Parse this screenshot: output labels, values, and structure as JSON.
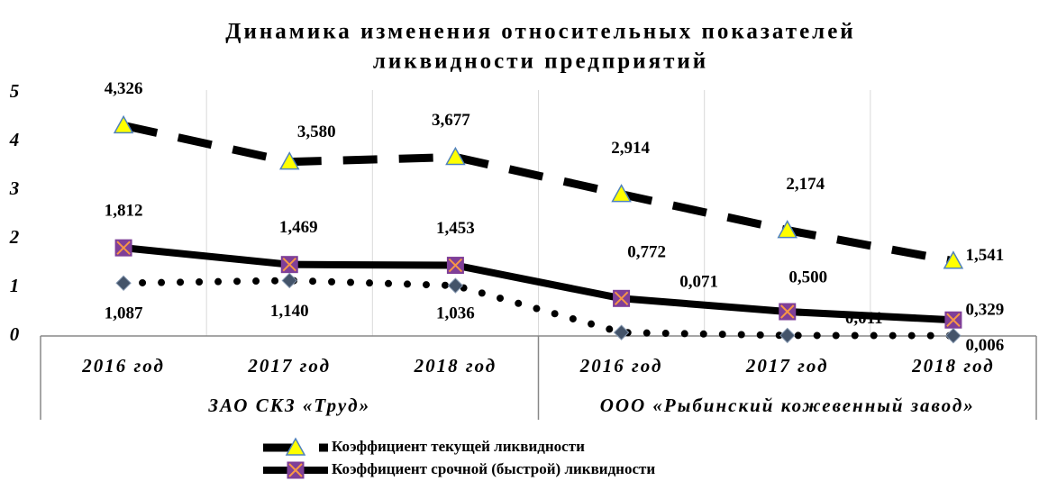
{
  "chart_data": {
    "type": "line",
    "title": [
      "Динамика изменения относительных показателей",
      "ликвидности предприятий"
    ],
    "categories": [
      "2016 год",
      "2017 год",
      "2018 год",
      "2016 год",
      "2017 год",
      "2018 год"
    ],
    "groups": [
      {
        "label": "ЗАО СКЗ «Труд»",
        "span": 3
      },
      {
        "label": "ООО «Рыбинский кожевенный завод»",
        "span": 3
      }
    ],
    "series": [
      {
        "name": "Коэффициент текущей ликвидности",
        "color": "#000000",
        "line_style": "dashed",
        "marker": "triangle",
        "values": [
          4.326,
          3.58,
          3.677,
          2.914,
          2.174,
          1.541
        ],
        "value_labels": [
          "4,326",
          "3,580",
          "3,677",
          "2,914",
          "2,174",
          "1,541"
        ]
      },
      {
        "name": "Коэффициент срочной (быстрой) ликвидности",
        "color": "#000000",
        "line_style": "solid",
        "marker": "square",
        "values": [
          1.812,
          1.469,
          1.453,
          0.772,
          0.5,
          0.329
        ],
        "value_labels": [
          "1,812",
          "1,469",
          "1,453",
          "0,772",
          "0,500",
          "0,329"
        ]
      },
      {
        "color": "#000000",
        "line_style": "dotted",
        "marker": "diamond",
        "values": [
          1.087,
          1.14,
          1.036,
          0.071,
          0.011,
          0.006
        ],
        "value_labels": [
          "1,087",
          "1,140",
          "1,036",
          "0,071",
          "0,011",
          "0,006"
        ]
      }
    ],
    "ylim": [
      0,
      5
    ],
    "yticks": [
      0,
      1,
      2,
      3,
      4,
      5
    ],
    "grid": "vertical"
  }
}
